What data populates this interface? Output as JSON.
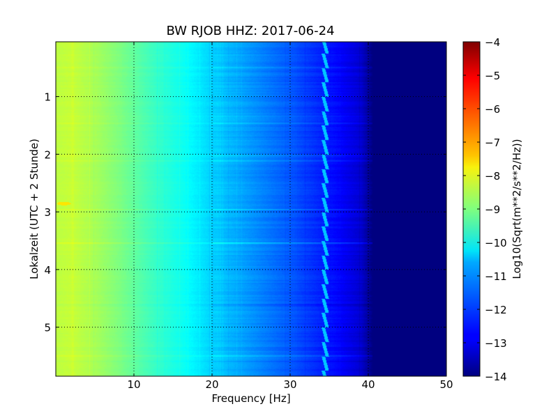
{
  "chart_data": {
    "type": "heatmap",
    "title": "BW RJOB HHZ: 2017-06-24",
    "xlabel": "Frequency [Hz]",
    "ylabel": "Lokalzeit (UTC + 2 Stunde)",
    "xlim": [
      0,
      50
    ],
    "ylim": [
      5.85,
      0.05
    ],
    "xticks": [
      10,
      20,
      30,
      40,
      50
    ],
    "yticks": [
      1,
      2,
      3,
      4,
      5
    ],
    "grid": true,
    "colorbar": {
      "label": "Log10(Sqrt(m**2/s**2/Hz))",
      "range": [
        -14,
        -4
      ],
      "ticks": [
        -4,
        -5,
        -6,
        -7,
        -8,
        -9,
        -10,
        -11,
        -12,
        -13,
        -14
      ],
      "colormap": "jet"
    },
    "profile": [
      {
        "f": 0,
        "v": -8.4
      },
      {
        "f": 2,
        "v": -8.3
      },
      {
        "f": 5,
        "v": -8.6
      },
      {
        "f": 8,
        "v": -9.0
      },
      {
        "f": 12,
        "v": -9.6
      },
      {
        "f": 16,
        "v": -10.1
      },
      {
        "f": 20,
        "v": -10.7
      },
      {
        "f": 25,
        "v": -11.3
      },
      {
        "f": 30,
        "v": -11.9
      },
      {
        "f": 33,
        "v": -12.3
      },
      {
        "f": 36,
        "v": -12.7
      },
      {
        "f": 39,
        "v": -13.2
      },
      {
        "f": 40.5,
        "v": -14.0
      },
      {
        "f": 50,
        "v": -14.0
      }
    ],
    "features": {
      "hot_spot": {
        "f": 1.0,
        "t": 2.85,
        "v": -7.5
      },
      "line_34hz_value": -10.8
    }
  },
  "colors": {
    "colormap_stops": [
      "#00007f",
      "#0000ff",
      "#007fff",
      "#00ffff",
      "#7fff7f",
      "#ffff00",
      "#ff7f00",
      "#ff0000",
      "#7f0000"
    ]
  }
}
